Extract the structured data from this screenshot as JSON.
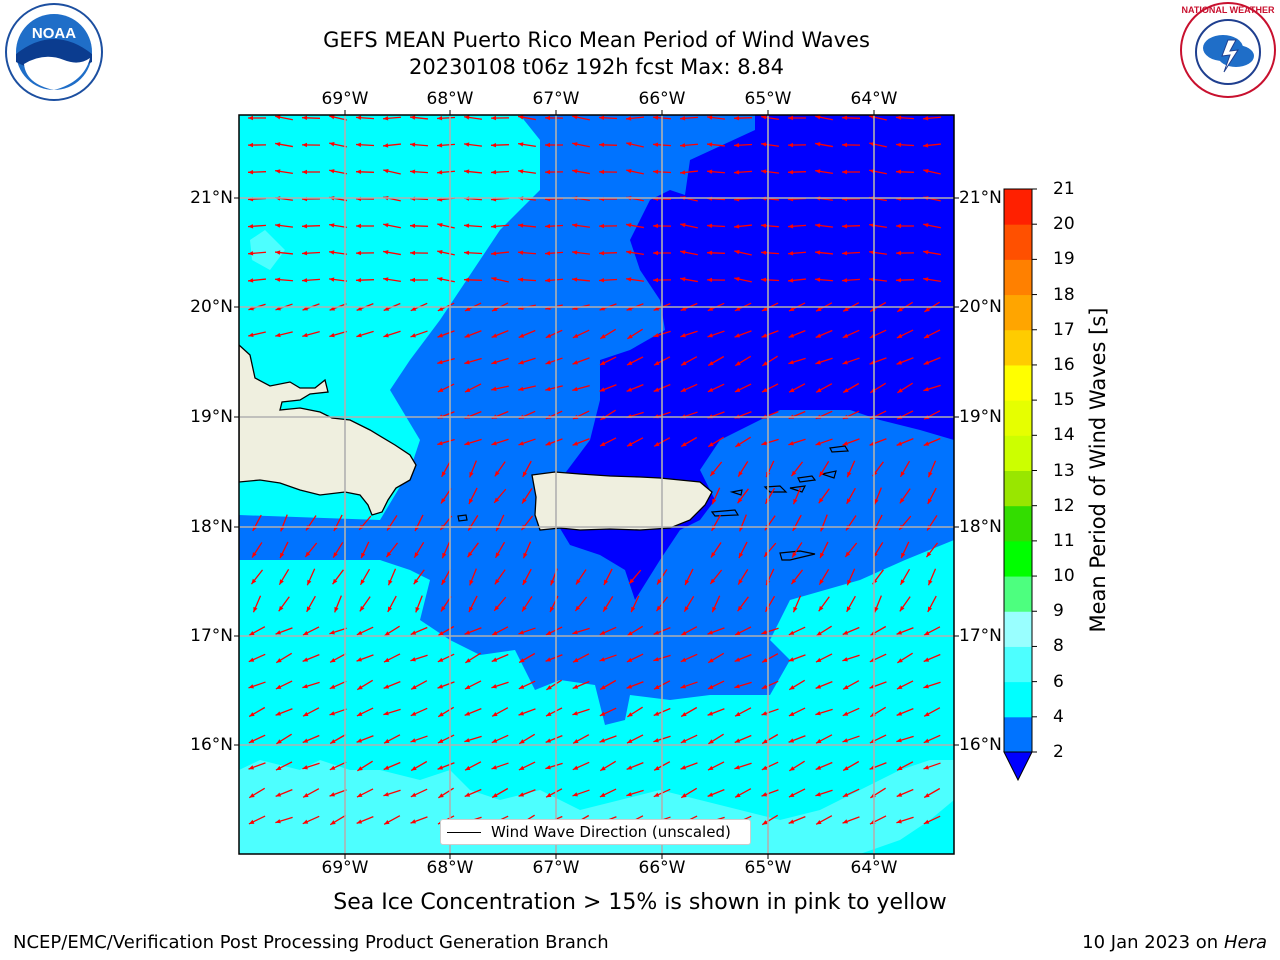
{
  "title": {
    "line1": "GEFS MEAN Puerto Rico Mean Period of Wind Waves",
    "line2": "20230108 t06z 192h fcst   Max: 8.84"
  },
  "map": {
    "lon_labels": [
      "69°W",
      "68°W",
      "67°W",
      "66°W",
      "65°W",
      "64°W"
    ],
    "lat_labels": [
      "21°N",
      "20°N",
      "19°N",
      "18°N",
      "17°N",
      "16°N"
    ],
    "colors": {
      "level_2_4": "#0073ff",
      "level_4_6": "#00ffff",
      "level_6_8": "#4dffff",
      "below_2": "#0000ff",
      "land": "#efefdf",
      "arrow": "#ff0000",
      "grid": "#b0b0b0"
    },
    "legend_label": "Wind Wave Direction (unscaled)"
  },
  "colorbar": {
    "title": "Mean Period of Wind Waves [s]",
    "ticks": [
      "2",
      "4",
      "6",
      "8",
      "9",
      "10",
      "11",
      "12",
      "13",
      "14",
      "15",
      "16",
      "17",
      "18",
      "19",
      "20",
      "21"
    ],
    "colors": [
      "#0073ff",
      "#00ffff",
      "#4dffff",
      "#99ffff",
      "#4dff7f",
      "#00ff00",
      "#33dd00",
      "#99e600",
      "#ccff00",
      "#e6ff00",
      "#ffff00",
      "#ffcc00",
      "#ffa500",
      "#ff8000",
      "#ff5000",
      "#ff2000",
      "#ff0000"
    ],
    "under_color": "#0000ff"
  },
  "subtitle": "Sea Ice Concentration > 15% is shown in pink to yellow",
  "footer": {
    "left": "NCEP/EMC/Verification Post Processing Product Generation Branch",
    "right_date": "10 Jan 2023 on ",
    "right_host": "Hera"
  },
  "logos": {
    "noaa": "NOAA",
    "nws": "NATIONAL WEATHER SERVICE"
  }
}
